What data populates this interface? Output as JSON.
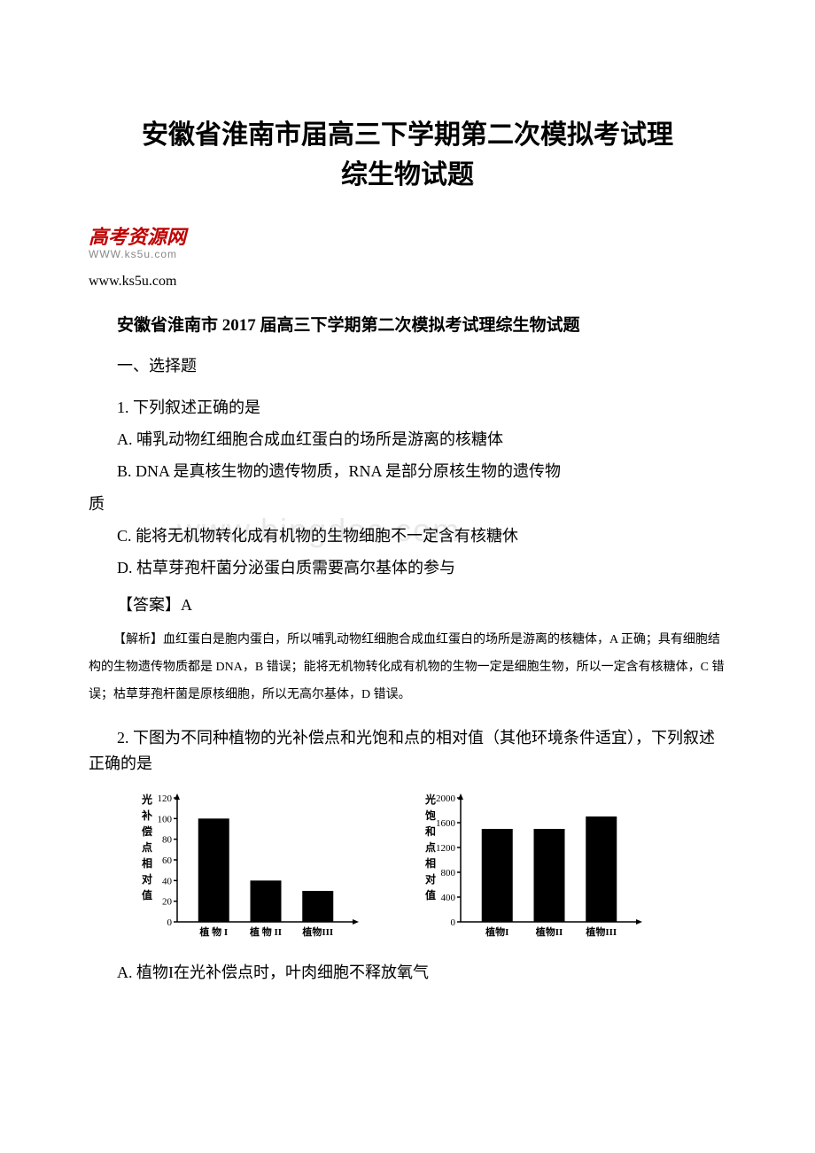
{
  "title_line1": "安徽省淮南市届高三下学期第二次模拟考试理",
  "title_line2": "综生物试题",
  "logo": {
    "text": "高考资源网",
    "url": "WWW.ks5u.com"
  },
  "page_url": "www.ks5u.com",
  "subtitle": "安徽省淮南市 2017 届高三下学期第二次模拟考试理综生物试题",
  "section_header": "一、选择题",
  "watermark": "www.bingdoc.com",
  "q1": {
    "text": "1. 下列叙述正确的是",
    "optA": "A. 哺乳动物红细胞合成血红蛋白的场所是游离的核糖体",
    "optB_line1": "B. DNA 是真核生物的遗传物质，RNA 是部分原核生物的遗传物",
    "optB_line2": "质",
    "optC": "C. 能将无机物转化成有机物的生物细胞不一定含有核糖休",
    "optD": "D. 枯草芽孢杆菌分泌蛋白质需要高尔基体的参与",
    "answer": "【答案】A",
    "explanation": "【解析】血红蛋白是胞内蛋白，所以哺乳动物红细胞合成血红蛋白的场所是游离的核糖体，A 正确；具有细胞结构的生物遗传物质都是 DNA，B 错误；能将无机物转化成有机物的生物一定是细胞生物，所以一定含有核糖体，C 错误；枯草芽孢杆菌是原核细胞，所以无高尔基体，D 错误。"
  },
  "q2": {
    "text": "2. 下图为不同种植物的光补偿点和光饱和点的相对值（其他环境条件适宜），下列叙述正确的是",
    "optA": "A. 植物I在光补偿点时，叶肉细胞不释放氧气"
  },
  "chart1": {
    "type": "bar",
    "ylabel_chars": [
      "光",
      "补",
      "偿",
      "点",
      "相",
      "对",
      "值"
    ],
    "ylim": [
      0,
      120
    ],
    "ytick_step": 20,
    "yticks": [
      0,
      20,
      40,
      60,
      80,
      100,
      120
    ],
    "categories": [
      "植 物 I",
      "植 物 II",
      "植物III"
    ],
    "values": [
      100,
      40,
      30
    ],
    "bar_color": "#000000",
    "background_color": "#ffffff",
    "axis_color": "#000000"
  },
  "chart2": {
    "type": "bar",
    "ylabel_chars": [
      "光",
      "饱",
      "和",
      "点",
      "相",
      "对",
      "值"
    ],
    "ylim": [
      0,
      2000
    ],
    "ytick_step": 400,
    "yticks": [
      0,
      400,
      800,
      1200,
      1600,
      2000
    ],
    "categories": [
      "植物I",
      "植物II",
      "植物III"
    ],
    "values": [
      1500,
      1500,
      1700
    ],
    "bar_color": "#000000",
    "background_color": "#ffffff",
    "axis_color": "#000000"
  }
}
